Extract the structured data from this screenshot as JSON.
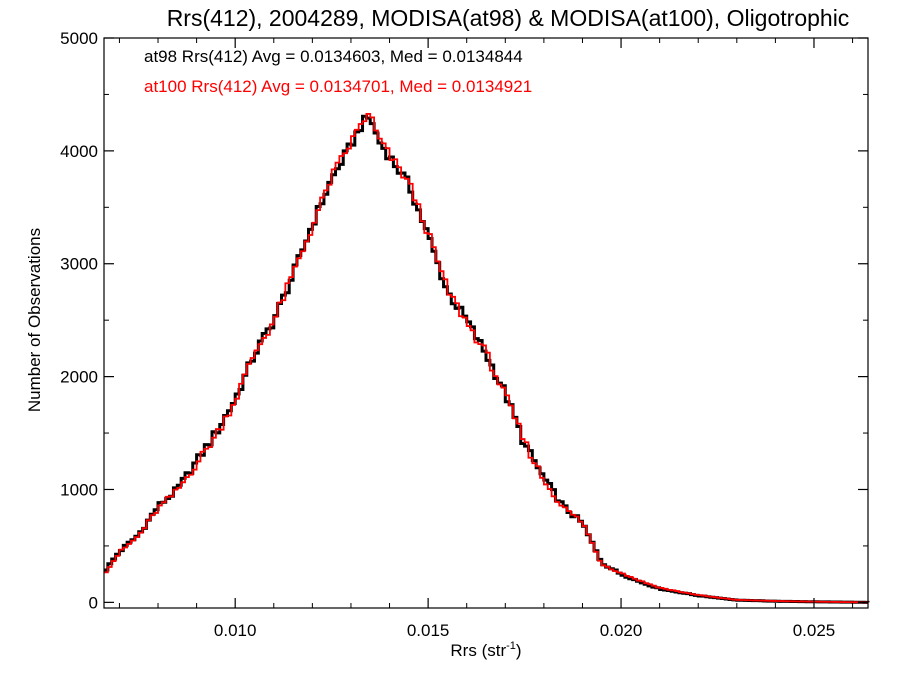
{
  "chart_data": {
    "type": "line",
    "title": "Rrs(412), 2004289, MODISA(at98) & MODISA(at100), Oligotrophic",
    "xlabel": "Rrs (str",
    "xlabel_sup": "-1",
    "xlabel_close": ")",
    "ylabel": "Number of Observations",
    "xlim": [
      0.0066,
      0.0264
    ],
    "ylim": [
      -50,
      5000
    ],
    "x_ticks": [
      0.01,
      0.015,
      0.02,
      0.025
    ],
    "x_tick_labels": [
      "0.010",
      "0.015",
      "0.020",
      "0.025"
    ],
    "y_ticks": [
      0,
      1000,
      2000,
      3000,
      4000,
      5000
    ],
    "y_tick_labels": [
      "0",
      "1000",
      "2000",
      "3000",
      "4000",
      "5000"
    ],
    "grid": false,
    "legend_position": "top-left",
    "annotations": [
      "at98 Rrs(412) Avg = 0.0134603, Med = 0.0134844",
      "at100 Rrs(412) Avg = 0.0134701, Med = 0.0134921"
    ],
    "series": [
      {
        "name": "at98",
        "color": "#000000",
        "x": [
          0.0066,
          0.007,
          0.0075,
          0.008,
          0.0085,
          0.009,
          0.0095,
          0.01,
          0.0105,
          0.011,
          0.0115,
          0.012,
          0.0125,
          0.013,
          0.0133,
          0.0135,
          0.0137,
          0.014,
          0.0145,
          0.015,
          0.0155,
          0.016,
          0.0165,
          0.017,
          0.0175,
          0.018,
          0.0185,
          0.019,
          0.0195,
          0.02,
          0.0205,
          0.021,
          0.0215,
          0.022,
          0.0225,
          0.023,
          0.024,
          0.025,
          0.0264
        ],
        "y": [
          270,
          450,
          600,
          850,
          1000,
          1250,
          1500,
          1800,
          2200,
          2500,
          2900,
          3350,
          3750,
          4050,
          4250,
          4300,
          4100,
          3950,
          3700,
          3250,
          2750,
          2500,
          2200,
          1850,
          1400,
          1100,
          850,
          700,
          350,
          250,
          180,
          120,
          90,
          60,
          40,
          20,
          10,
          5,
          0
        ]
      },
      {
        "name": "at100",
        "color": "#ff0000",
        "x": [
          0.0066,
          0.007,
          0.0075,
          0.008,
          0.0085,
          0.009,
          0.0095,
          0.01,
          0.0105,
          0.011,
          0.0115,
          0.012,
          0.0125,
          0.013,
          0.0133,
          0.0135,
          0.0137,
          0.014,
          0.0145,
          0.015,
          0.0155,
          0.016,
          0.0165,
          0.017,
          0.0175,
          0.018,
          0.0185,
          0.019,
          0.0195,
          0.02,
          0.0205,
          0.021,
          0.0215,
          0.022,
          0.0225,
          0.023,
          0.024,
          0.025,
          0.0264
        ],
        "y": [
          250,
          440,
          590,
          830,
          990,
          1230,
          1480,
          1790,
          2210,
          2490,
          2910,
          3330,
          3770,
          4070,
          4270,
          4320,
          4120,
          3960,
          3720,
          3270,
          2770,
          2480,
          2210,
          1830,
          1420,
          1080,
          840,
          710,
          340,
          260,
          190,
          130,
          95,
          65,
          42,
          22,
          12,
          6,
          0
        ]
      }
    ]
  }
}
